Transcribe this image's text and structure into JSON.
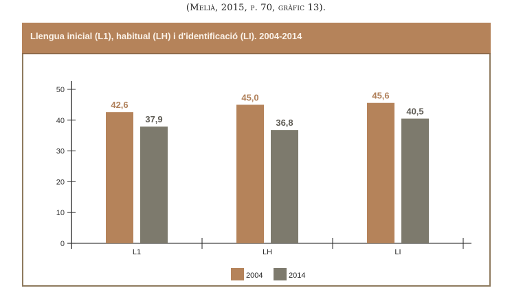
{
  "caption": "(Melià, 2015, p. 70, gràfic 13).",
  "chart_data": {
    "type": "bar",
    "title": "Llengua inicial (L1), habitual (LH) i d'identificació (LI). 2004-2014",
    "categories": [
      "L1",
      "LH",
      "LI"
    ],
    "series": [
      {
        "name": "2004",
        "values": [
          42.6,
          45.0,
          45.6
        ],
        "labels": [
          "42,6",
          "45,0",
          "45,6"
        ],
        "color": "#b5835a"
      },
      {
        "name": "2014",
        "values": [
          37.9,
          36.8,
          40.5
        ],
        "labels": [
          "37,9",
          "36,8",
          "40,5"
        ],
        "color": "#7d7a6d"
      }
    ],
    "yticks": [
      "0",
      "10",
      "20",
      "30",
      "40",
      "50"
    ],
    "ylim": [
      0,
      50
    ],
    "xlabel": "",
    "ylabel": "",
    "legend": "bottom-center",
    "grid": false
  },
  "colors": {
    "header_bg": "#b5835a",
    "frame_border": "#8e7a5e",
    "label_2004": "#b0805a",
    "label_2014": "#5f5c55"
  }
}
